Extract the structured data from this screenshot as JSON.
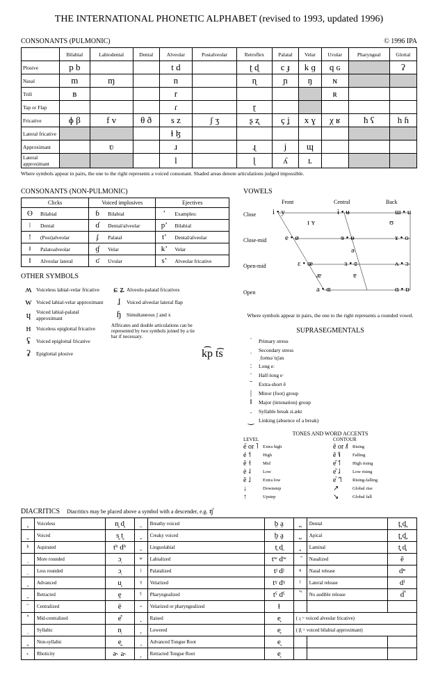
{
  "title": "THE INTERNATIONAL PHONETIC ALPHABET (revised to 1993, updated 1996)",
  "copyright": "© 1996 IPA",
  "sections": {
    "pulmonic": "CONSONANTS (PULMONIC)",
    "nonpulmonic": "CONSONANTS (NON-PULMONIC)",
    "vowels": "VOWELS",
    "other": "OTHER SYMBOLS",
    "diacritics_title": "DIACRITICS",
    "diacritics_note": "Diacritics may be placed above a symbol with a descender, e.g.",
    "diacritics_example": "ŋ̊",
    "supraseg": "SUPRASEGMENTALS",
    "tones": "TONES AND WORD ACCENTS"
  },
  "pulmonic": {
    "places": [
      "Bilabial",
      "Labiodental",
      "Dental",
      "Alveolar",
      "Postalveolar",
      "Retroflex",
      "Palatal",
      "Velar",
      "Uvular",
      "Pharyngeal",
      "Glottal"
    ],
    "manners": [
      "Plosive",
      "Nasal",
      "Trill",
      "Tap or Flap",
      "Fricative",
      "Lateral fricative",
      "Approximant",
      "Lateral approximant"
    ],
    "cells": [
      [
        "p  b",
        "",
        "",
        "t  d",
        "",
        "ʈ  ɖ",
        "c  ɟ",
        "k  ɡ",
        "q  ɢ",
        "SH",
        "ʔ"
      ],
      [
        "m",
        "ɱ",
        "",
        "n",
        "",
        "ɳ",
        "ɲ",
        "ŋ",
        "ɴ",
        "SH",
        "SH"
      ],
      [
        "ʙ",
        "",
        "",
        "r",
        "",
        "",
        "",
        "SH",
        "ʀ",
        "",
        ""
      ],
      [
        "",
        "",
        "",
        "ɾ",
        "",
        "ɽ",
        "",
        "SH",
        "",
        "",
        ""
      ],
      [
        "ɸ  β",
        "f  v",
        "θ  ð",
        "s  z",
        "ʃ  ʒ",
        "ʂ  ʐ",
        "ç  ʝ",
        "x  ɣ",
        "χ  ʁ",
        "ħ  ʕ",
        "h  ɦ"
      ],
      [
        "SH",
        "SH",
        "",
        "ɬ  ɮ",
        "",
        "",
        "",
        "",
        "",
        "SH",
        "SH"
      ],
      [
        "",
        "ʋ",
        "",
        "ɹ",
        "",
        "ɻ",
        "j",
        "ɰ",
        "",
        "",
        ""
      ],
      [
        "SH",
        "SH",
        "",
        "l",
        "",
        "ɭ",
        "ʎ",
        "ʟ",
        "",
        "SH",
        "SH"
      ]
    ],
    "note": "Where symbols appear in pairs, the one to the right represents a voiced consonant. Shaded areas denote articulations judged impossible."
  },
  "nonpulmonic": {
    "headers": [
      "Clicks",
      "Voiced implosives",
      "Ejectives"
    ],
    "rows": [
      [
        "ʘ",
        "Bilabial",
        "ɓ",
        "Bilabial",
        "ʼ",
        "Examples:"
      ],
      [
        "ǀ",
        "Dental",
        "ɗ",
        "Dental/alveolar",
        "pʼ",
        "Bilabial"
      ],
      [
        "ǃ",
        "(Post)alveolar",
        "ʄ",
        "Palatal",
        "tʼ",
        "Dental/alveolar"
      ],
      [
        "ǂ",
        "Palatoalveolar",
        "ɠ",
        "Velar",
        "kʼ",
        "Velar"
      ],
      [
        "ǁ",
        "Alveolar lateral",
        "ʛ",
        "Uvular",
        "sʼ",
        "Alveolar fricative"
      ]
    ]
  },
  "other_symbols": {
    "left": [
      [
        "ʍ",
        "Voiceless labial-velar fricative"
      ],
      [
        "w",
        "Voiced labial-velar approximant"
      ],
      [
        "ɥ",
        "Voiced labial-palatal approximant"
      ],
      [
        "ʜ",
        "Voiceless epiglottal fricative"
      ],
      [
        "ʢ",
        "Voiced epiglottal fricative"
      ],
      [
        "ʡ",
        "Epiglottal plosive"
      ]
    ],
    "right": [
      [
        "ɕ ʑ",
        "Alveolo-palatal fricatives"
      ],
      [
        "ɺ",
        "Voiced alveolar lateral flap"
      ],
      [
        "ɧ",
        "Simultaneous ʃ and x"
      ]
    ],
    "affricate_note": "Affricates and double articulations can be represented by two symbols joined by a tie bar if necessary.",
    "affricate_ex": "k͡p  t͡s"
  },
  "vowels": {
    "cols": [
      "Front",
      "Central",
      "Back"
    ],
    "rows": [
      "Close",
      "Close-mid",
      "Open-mid",
      "Open"
    ],
    "note": "Where symbols appear in pairs, the one to the right represents a rounded vowel."
  },
  "diacritics": {
    "rows": [
      [
        "̥",
        "Voiceless",
        "n̥ d̥",
        "̤",
        "Breathy voiced",
        "b̤ a̤",
        "̪",
        "Dental",
        "t̪ d̪"
      ],
      [
        "̬",
        "Voiced",
        "s̬ t̬",
        "̰",
        "Creaky voiced",
        "b̰ a̰",
        "̺",
        "Apical",
        "t̺ d̺"
      ],
      [
        "ʰ",
        "Aspirated",
        "tʰ dʰ",
        "̼",
        "Linguolabial",
        "t̼ d̼",
        "̻",
        "Laminal",
        "t̻ d̻"
      ],
      [
        "̹",
        "More rounded",
        "ɔ̹",
        "ʷ",
        "Labialized",
        "tʷ dʷ",
        "̃",
        "Nasalized",
        "ẽ"
      ],
      [
        "̜",
        "Less rounded",
        "ɔ̜",
        "ʲ",
        "Palatalized",
        "tʲ dʲ",
        "ⁿ",
        "Nasal release",
        "dⁿ"
      ],
      [
        "̟",
        "Advanced",
        "u̟",
        "ˠ",
        "Velarized",
        "tˠ dˠ",
        "ˡ",
        "Lateral release",
        "dˡ"
      ],
      [
        "̠",
        "Retracted",
        "e̠",
        "ˤ",
        "Pharyngealized",
        "tˤ dˤ",
        "̚",
        "No audible release",
        "d̚"
      ],
      [
        "̈",
        "Centralized",
        "ë",
        "̴",
        "Velarized or pharyngealized",
        "ɫ",
        "",
        "",
        ""
      ],
      [
        "̽",
        "Mid-centralized",
        "e̽",
        "̝",
        "Raised",
        "e̝",
        "( ɹ̝ = voiced alveolar fricative)",
        "",
        ""
      ],
      [
        "̩",
        "Syllabic",
        "n̩",
        "̞",
        "Lowered",
        "e̞",
        "( β̞ = voiced bilabial approximant)",
        "",
        ""
      ],
      [
        "̯",
        "Non-syllabic",
        "e̯",
        "̘",
        "Advanced Tongue Root",
        "e̘",
        "",
        "",
        ""
      ],
      [
        "˞",
        "Rhoticity",
        "ə˞ a˞",
        "̙",
        "Retracted Tongue Root",
        "e̙",
        "",
        "",
        ""
      ]
    ]
  },
  "supraseg": {
    "items": [
      [
        "ˈ",
        "Primary stress"
      ],
      [
        "ˌ",
        "Secondary stress"
      ],
      [
        "",
        "ˌfoʊnəˈtɪʃən"
      ],
      [
        "ː",
        "Long    eː"
      ],
      [
        "ˑ",
        "Half-long    eˑ"
      ],
      [
        "̆",
        "Extra-short    ĕ"
      ],
      [
        "|",
        "Minor (foot) group"
      ],
      [
        "‖",
        "Major (intonation) group"
      ],
      [
        ".",
        "Syllable break    ɹi.ækt"
      ],
      [
        "‿",
        "Linking (absence of a break)"
      ]
    ]
  },
  "tones": {
    "level_head": "LEVEL",
    "contour_head": "CONTOUR",
    "level": [
      [
        "e̋ or ˥",
        "Extra high"
      ],
      [
        "é   ˦",
        "High"
      ],
      [
        "ē   ˧",
        "Mid"
      ],
      [
        "è   ˨",
        "Low"
      ],
      [
        "ȅ   ˩",
        "Extra low"
      ],
      [
        "↓",
        "Downstep"
      ],
      [
        "↑",
        "Upstep"
      ]
    ],
    "contour": [
      [
        "ě or ˩˥",
        "Rising"
      ],
      [
        "ê   ˥˩",
        "Falling"
      ],
      [
        "e᷄   ˦˥",
        "High rising"
      ],
      [
        "e᷅   ˩˨",
        "Low rising"
      ],
      [
        "e᷈   ˦˥˦",
        "Rising-falling"
      ],
      [
        "↗",
        "Global rise"
      ],
      [
        "↘",
        "Global fall"
      ]
    ]
  }
}
